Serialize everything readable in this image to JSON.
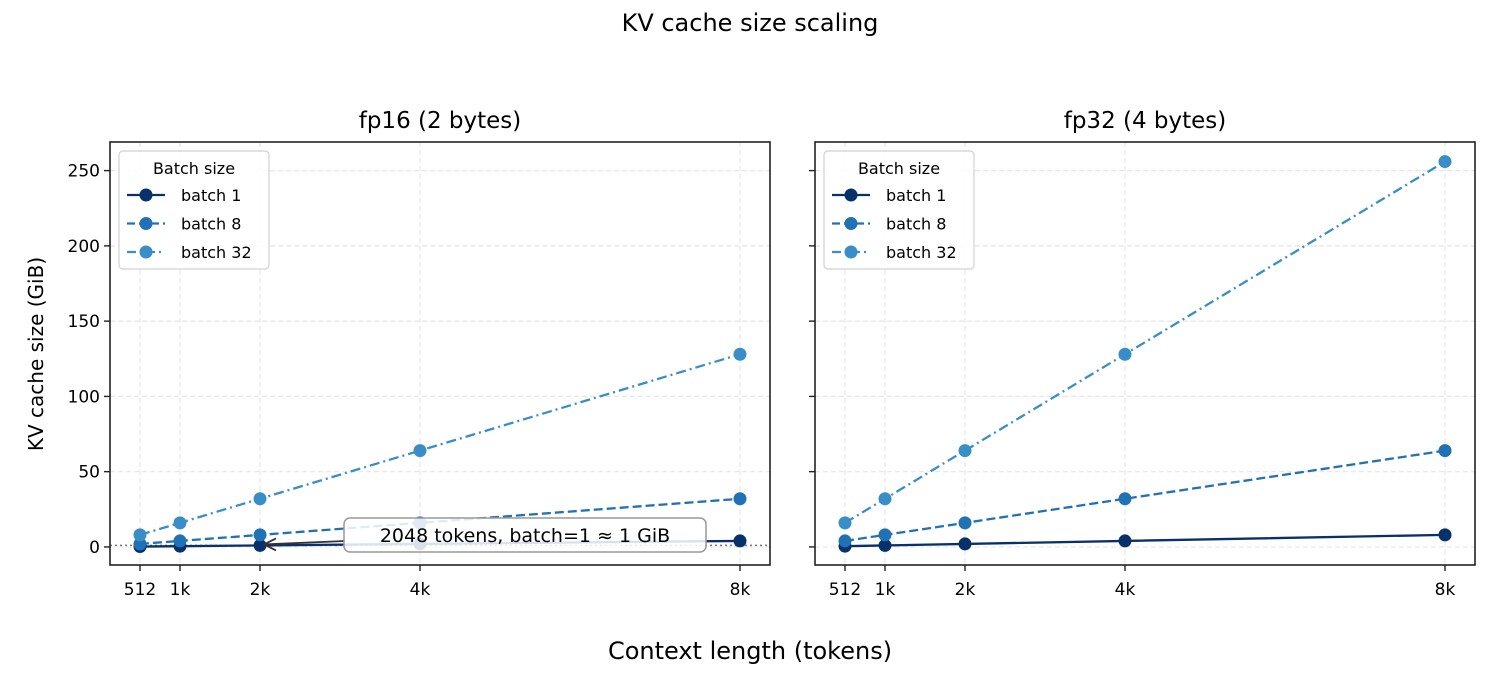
{
  "chart_data": {
    "type": "line",
    "title": "KV cache size scaling",
    "xlabel": "Context length (tokens)",
    "ylabel": "KV cache size (GiB)",
    "x": [
      512,
      1024,
      2048,
      4096,
      8192
    ],
    "x_tick_labels": [
      "512",
      "1k",
      "2k",
      "4k",
      "8k"
    ],
    "y_ticks": [
      0,
      50,
      100,
      150,
      200,
      250
    ],
    "ylim": [
      -12,
      269
    ],
    "grid": true,
    "sharey": true,
    "legend": {
      "title": "Batch size",
      "position": "upper left"
    },
    "panels": [
      {
        "title": "fp16 (2 bytes)",
        "series": [
          {
            "name": "batch 1",
            "values": [
              0.25,
              0.5,
              1,
              2,
              4
            ],
            "color": "#08306b",
            "linestyle": "solid"
          },
          {
            "name": "batch 8",
            "values": [
              2,
              4,
              8,
              16,
              32
            ],
            "color": "#2171b5",
            "linestyle": "dashed"
          },
          {
            "name": "batch 32",
            "values": [
              8,
              16,
              32,
              64,
              128
            ],
            "color": "#3a8ec8",
            "linestyle": "dashdot"
          }
        ],
        "annotation": {
          "text": "2048 tokens, batch=1 ≈ 1 GiB",
          "points_to": {
            "x": 2048,
            "y": 1
          }
        },
        "reference_line": {
          "y": 1,
          "style": "dotted",
          "color": "#777777"
        }
      },
      {
        "title": "fp32 (4 bytes)",
        "series": [
          {
            "name": "batch 1",
            "values": [
              0.5,
              1,
              2,
              4,
              8
            ],
            "color": "#08306b",
            "linestyle": "solid"
          },
          {
            "name": "batch 8",
            "values": [
              4,
              8,
              16,
              32,
              64
            ],
            "color": "#2171b5",
            "linestyle": "dashed"
          },
          {
            "name": "batch 32",
            "values": [
              16,
              32,
              64,
              128,
              256
            ],
            "color": "#3a8ec8",
            "linestyle": "dashdot"
          }
        ]
      }
    ]
  },
  "labels": {
    "suptitle": "KV cache size scaling",
    "xlabel": "Context length (tokens)",
    "ylabel": "KV cache size (GiB)",
    "left_title": "fp16 (2 bytes)",
    "right_title": "fp32 (4 bytes)",
    "legend_title": "Batch size",
    "annotation": "2048 tokens, batch=1 ≈ 1 GiB"
  }
}
